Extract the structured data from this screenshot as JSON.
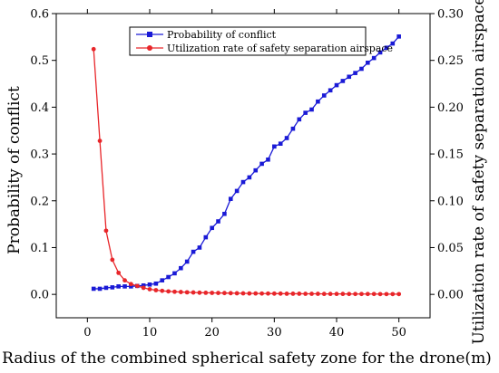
{
  "chart_data": {
    "type": "line",
    "title": "",
    "xlabel": "Radius of the combined spherical safety zone for the drone(m)",
    "ylabel_left": "Probability of conflict",
    "ylabel_right": "Utilization rate of safety separation airspace",
    "xlim": [
      -5,
      55
    ],
    "ylim_left": [
      -0.05,
      0.6
    ],
    "ylim_right": [
      -0.025,
      0.3
    ],
    "x_ticks": [
      0,
      10,
      20,
      30,
      40,
      50
    ],
    "y_ticks_left": [
      0.0,
      0.1,
      0.2,
      0.3,
      0.4,
      0.5,
      0.6
    ],
    "y_ticks_right": [
      0.0,
      0.05,
      0.1,
      0.15,
      0.2,
      0.25,
      0.3
    ],
    "y_ticks_left_labels": [
      "0.0",
      "0.1",
      "0.2",
      "0.3",
      "0.4",
      "0.5",
      "0.6"
    ],
    "y_ticks_right_labels": [
      "0.00",
      "0.05",
      "0.10",
      "0.15",
      "0.20",
      "0.25",
      "0.30"
    ],
    "grid": false,
    "legend_position": "top-center",
    "x": [
      1,
      2,
      3,
      4,
      5,
      6,
      7,
      8,
      9,
      10,
      11,
      12,
      13,
      14,
      15,
      16,
      17,
      18,
      19,
      20,
      21,
      22,
      23,
      24,
      25,
      26,
      27,
      28,
      29,
      30,
      31,
      32,
      33,
      34,
      35,
      36,
      37,
      38,
      39,
      40,
      41,
      42,
      43,
      44,
      45,
      46,
      47,
      48,
      49,
      50
    ],
    "series": [
      {
        "name": "Probability of conflict",
        "axis": "left",
        "color": "#1a1ad6",
        "marker": "square",
        "values": [
          0.012,
          0.012,
          0.014,
          0.015,
          0.017,
          0.017,
          0.017,
          0.018,
          0.019,
          0.021,
          0.023,
          0.03,
          0.037,
          0.045,
          0.056,
          0.07,
          0.091,
          0.1,
          0.122,
          0.142,
          0.156,
          0.172,
          0.204,
          0.221,
          0.24,
          0.25,
          0.265,
          0.279,
          0.288,
          0.316,
          0.322,
          0.334,
          0.354,
          0.374,
          0.388,
          0.395,
          0.412,
          0.425,
          0.436,
          0.447,
          0.456,
          0.465,
          0.473,
          0.482,
          0.495,
          0.505,
          0.517,
          0.527,
          0.536,
          0.551
        ]
      },
      {
        "name": "Utilization rate of safety separation airspace",
        "axis": "right",
        "color": "#e8262a",
        "marker": "circle",
        "values": [
          0.262,
          0.164,
          0.068,
          0.037,
          0.023,
          0.015,
          0.011,
          0.009,
          0.007,
          0.0055,
          0.0045,
          0.0038,
          0.0032,
          0.0028,
          0.0025,
          0.0022,
          0.002,
          0.0018,
          0.0017,
          0.0016,
          0.0015,
          0.0014,
          0.0013,
          0.0012,
          0.0011,
          0.001,
          0.001,
          0.0009,
          0.0009,
          0.0008,
          0.0008,
          0.0007,
          0.0007,
          0.0007,
          0.0006,
          0.0006,
          0.0006,
          0.0005,
          0.0005,
          0.0005,
          0.0005,
          0.0004,
          0.0004,
          0.0004,
          0.0004,
          0.0004,
          0.0003,
          0.0003,
          0.0003,
          0.0003
        ]
      }
    ]
  }
}
